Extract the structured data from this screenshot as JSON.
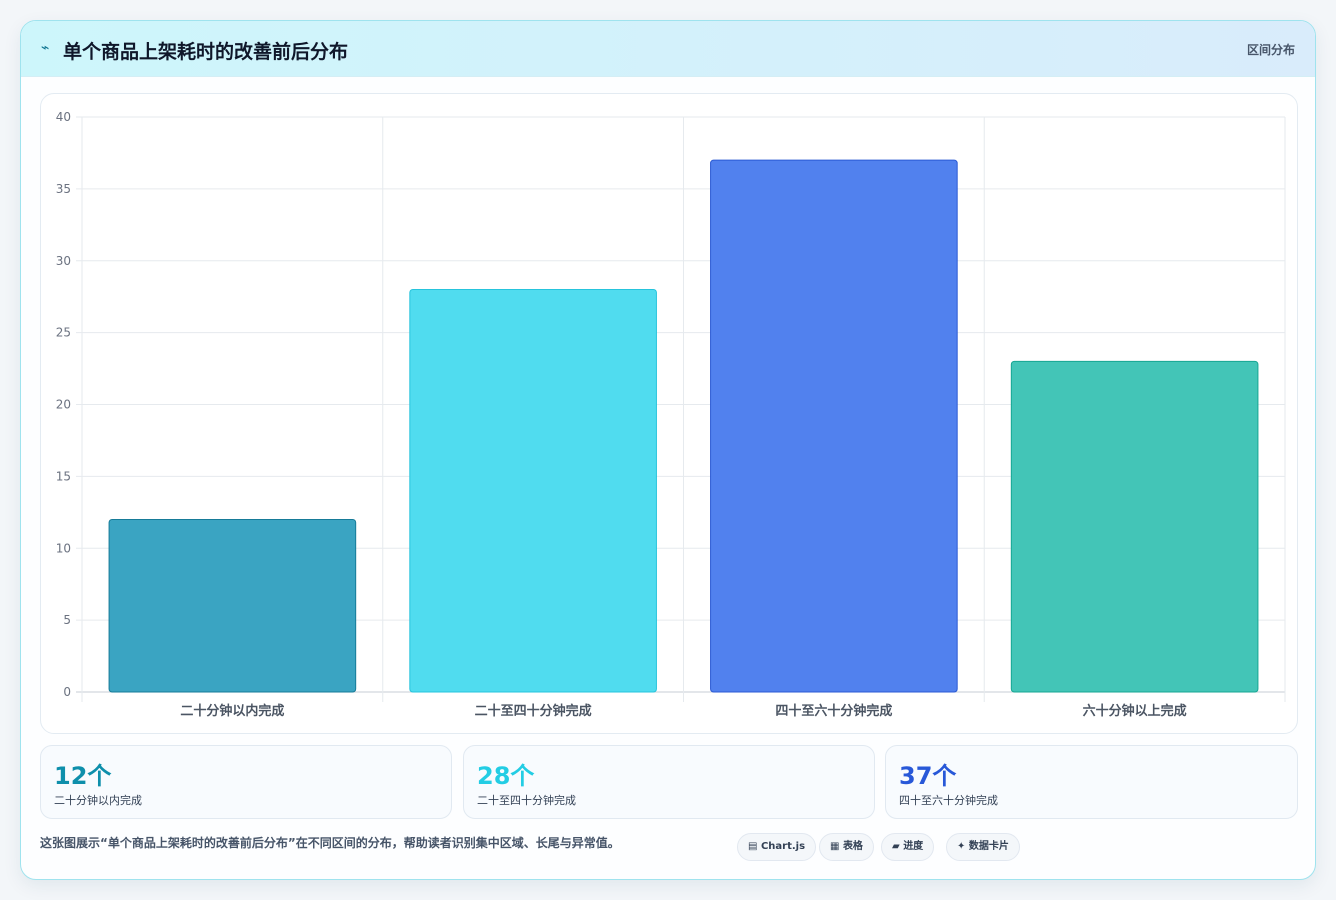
{
  "header": {
    "icon": "⌁",
    "title": "单个商品上架耗时的改善前后分布",
    "badge": "区间分布"
  },
  "chart_data": {
    "type": "bar",
    "categories": [
      "二十分钟以内完成",
      "二十至四十分钟完成",
      "四十至六十分钟完成",
      "六十分钟以上完成"
    ],
    "values": [
      12,
      28,
      37,
      23
    ],
    "colors": [
      "#3aa4c2",
      "#50dcef",
      "#5181ee",
      "#43c5b7"
    ],
    "borders": [
      "#167b98",
      "#26c4dc",
      "#2a59d4",
      "#17a693"
    ],
    "ylim": [
      0,
      40
    ],
    "yticks": [
      0,
      5,
      10,
      15,
      20,
      25,
      30,
      35,
      40
    ],
    "grid": true,
    "legend": "none"
  },
  "stats": [
    {
      "value": "12个",
      "label": "二十分钟以内完成",
      "color": "#0e8fab"
    },
    {
      "value": "28个",
      "label": "二十至四十分钟完成",
      "color": "#23cde4"
    },
    {
      "value": "37个",
      "label": "四十至六十分钟完成",
      "color": "#2858d8"
    }
  ],
  "footer": {
    "description": "这张图展示“单个商品上架耗时的改善前后分布”在不同区间的分布，帮助读者识别集中区域、长尾与异常值。",
    "tags": [
      {
        "icon": "▤",
        "label": "Chart.js"
      },
      {
        "icon": "▦",
        "label": "表格"
      },
      {
        "icon": "▰",
        "label": "进度"
      },
      {
        "icon": "✦",
        "label": "数据卡片"
      }
    ]
  }
}
